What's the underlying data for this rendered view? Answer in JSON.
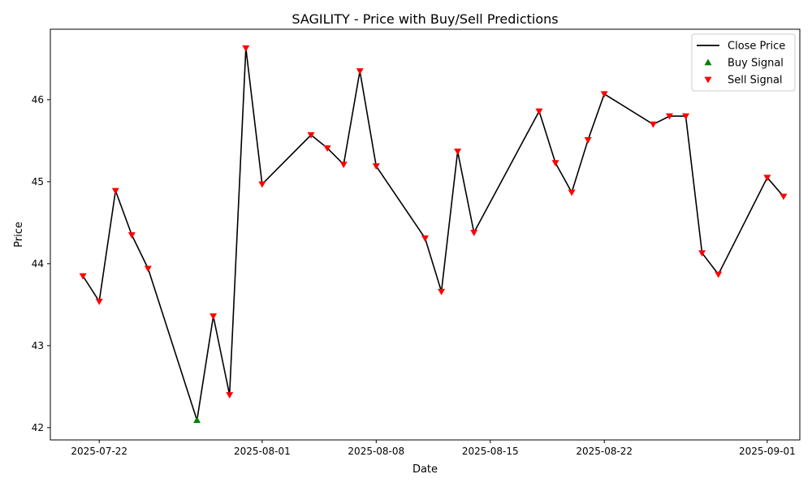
{
  "chart_data": {
    "type": "line",
    "title": "SAGILITY - Price with Buy/Sell Predictions",
    "xlabel": "Date",
    "ylabel": "Price",
    "xlim": [
      "2025-07-19",
      "2025-09-03"
    ],
    "ylim": [
      41.85,
      46.86
    ],
    "x_ticks": [
      "2025-07-22",
      "2025-08-01",
      "2025-08-08",
      "2025-08-15",
      "2025-08-22",
      "2025-09-01"
    ],
    "y_ticks": [
      42,
      43,
      44,
      45,
      46
    ],
    "grid": false,
    "legend_position": "top-right",
    "series": [
      {
        "name": "Close Price",
        "kind": "line",
        "color": "#000000",
        "points": [
          {
            "date": "2025-07-21",
            "value": 43.85
          },
          {
            "date": "2025-07-22",
            "value": 43.54
          },
          {
            "date": "2025-07-23",
            "value": 44.89
          },
          {
            "date": "2025-07-24",
            "value": 44.35
          },
          {
            "date": "2025-07-25",
            "value": 43.94
          },
          {
            "date": "2025-07-28",
            "value": 42.09
          },
          {
            "date": "2025-07-29",
            "value": 43.36
          },
          {
            "date": "2025-07-30",
            "value": 42.4
          },
          {
            "date": "2025-07-31",
            "value": 46.63
          },
          {
            "date": "2025-08-01",
            "value": 44.97
          },
          {
            "date": "2025-08-04",
            "value": 45.57
          },
          {
            "date": "2025-08-05",
            "value": 45.41
          },
          {
            "date": "2025-08-06",
            "value": 45.21
          },
          {
            "date": "2025-08-07",
            "value": 46.35
          },
          {
            "date": "2025-08-08",
            "value": 45.19
          },
          {
            "date": "2025-08-11",
            "value": 44.31
          },
          {
            "date": "2025-08-12",
            "value": 43.66
          },
          {
            "date": "2025-08-13",
            "value": 45.37
          },
          {
            "date": "2025-08-14",
            "value": 44.38
          },
          {
            "date": "2025-08-18",
            "value": 45.86
          },
          {
            "date": "2025-08-19",
            "value": 45.23
          },
          {
            "date": "2025-08-20",
            "value": 44.87
          },
          {
            "date": "2025-08-21",
            "value": 45.51
          },
          {
            "date": "2025-08-22",
            "value": 46.07
          },
          {
            "date": "2025-08-25",
            "value": 45.7
          },
          {
            "date": "2025-08-26",
            "value": 45.8
          },
          {
            "date": "2025-08-27",
            "value": 45.8
          },
          {
            "date": "2025-08-28",
            "value": 44.13
          },
          {
            "date": "2025-08-29",
            "value": 43.87
          },
          {
            "date": "2025-09-01",
            "value": 45.05
          },
          {
            "date": "2025-09-02",
            "value": 44.82
          }
        ]
      },
      {
        "name": "Buy Signal",
        "kind": "scatter",
        "marker": "triangle-up",
        "color": "#008000",
        "points": [
          {
            "date": "2025-07-28",
            "value": 42.09
          }
        ]
      },
      {
        "name": "Sell Signal",
        "kind": "scatter",
        "marker": "triangle-down",
        "color": "#ff0000",
        "points": [
          {
            "date": "2025-07-21",
            "value": 43.85
          },
          {
            "date": "2025-07-22",
            "value": 43.54
          },
          {
            "date": "2025-07-23",
            "value": 44.89
          },
          {
            "date": "2025-07-24",
            "value": 44.35
          },
          {
            "date": "2025-07-25",
            "value": 43.94
          },
          {
            "date": "2025-07-29",
            "value": 43.36
          },
          {
            "date": "2025-07-30",
            "value": 42.4
          },
          {
            "date": "2025-07-31",
            "value": 46.63
          },
          {
            "date": "2025-08-01",
            "value": 44.97
          },
          {
            "date": "2025-08-04",
            "value": 45.57
          },
          {
            "date": "2025-08-05",
            "value": 45.41
          },
          {
            "date": "2025-08-06",
            "value": 45.21
          },
          {
            "date": "2025-08-07",
            "value": 46.35
          },
          {
            "date": "2025-08-08",
            "value": 45.19
          },
          {
            "date": "2025-08-11",
            "value": 44.31
          },
          {
            "date": "2025-08-12",
            "value": 43.66
          },
          {
            "date": "2025-08-13",
            "value": 45.37
          },
          {
            "date": "2025-08-14",
            "value": 44.38
          },
          {
            "date": "2025-08-18",
            "value": 45.86
          },
          {
            "date": "2025-08-19",
            "value": 45.23
          },
          {
            "date": "2025-08-20",
            "value": 44.87
          },
          {
            "date": "2025-08-21",
            "value": 45.51
          },
          {
            "date": "2025-08-22",
            "value": 46.07
          },
          {
            "date": "2025-08-25",
            "value": 45.7
          },
          {
            "date": "2025-08-26",
            "value": 45.8
          },
          {
            "date": "2025-08-27",
            "value": 45.8
          },
          {
            "date": "2025-08-28",
            "value": 44.13
          },
          {
            "date": "2025-08-29",
            "value": 43.87
          },
          {
            "date": "2025-09-01",
            "value": 45.05
          },
          {
            "date": "2025-09-02",
            "value": 44.82
          }
        ]
      }
    ]
  }
}
